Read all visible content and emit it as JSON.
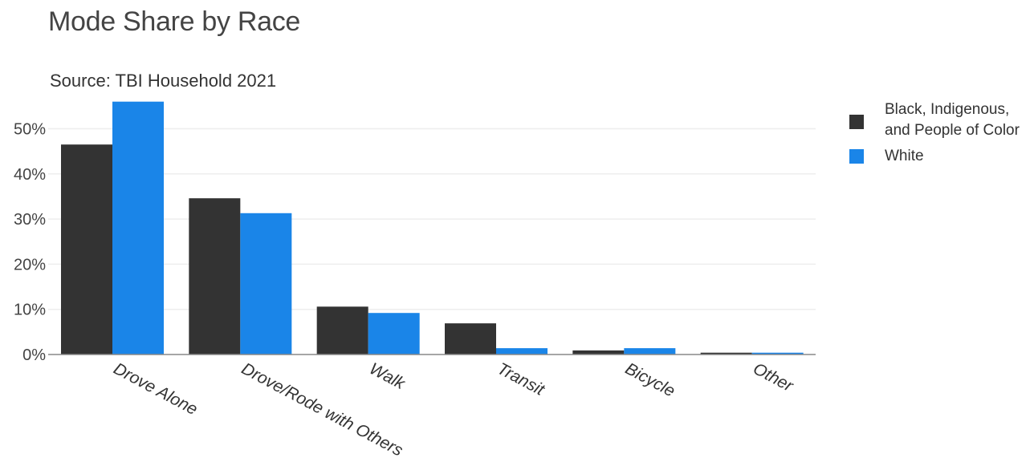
{
  "chart_data": {
    "type": "bar",
    "title": "Mode Share by Race",
    "subtitle": "Source: TBI Household 2021",
    "xlabel": "",
    "ylabel": "",
    "categories": [
      "Drove Alone",
      "Drove/Rode with Others",
      "Walk",
      "Transit",
      "Bicycle",
      "Other"
    ],
    "series": [
      {
        "name": "Black, Indigenous, and People of Color",
        "color": "#333333",
        "values": [
          46.5,
          34.6,
          10.6,
          6.9,
          0.9,
          0.4
        ]
      },
      {
        "name": "White",
        "color": "#1a85e8",
        "values": [
          56.0,
          31.3,
          9.2,
          1.4,
          1.4,
          0.4
        ]
      }
    ],
    "y_tick_labels": [
      "0%",
      "10%",
      "20%",
      "30%",
      "40%",
      "50%"
    ],
    "ylim": [
      0,
      56
    ],
    "grid": true,
    "legend_position": "right"
  }
}
